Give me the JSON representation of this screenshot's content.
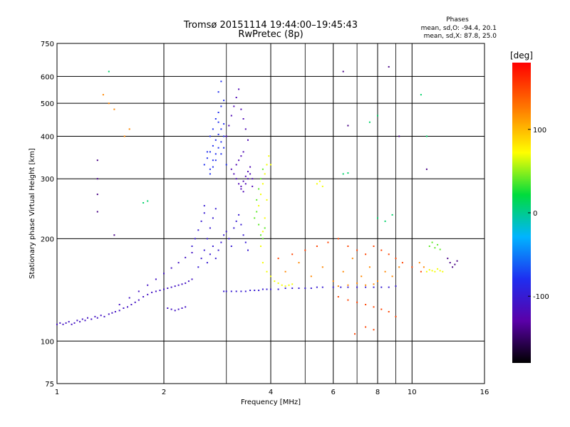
{
  "chart_data": {
    "type": "scatter",
    "title": "Tromsø 20151114 19:44:00–19:45:43",
    "subtitle": "RwPretec (8p)",
    "xlabel": "Frequency [MHz]",
    "ylabel": "Stationary phase Virtual Height [km]",
    "x_scale": "log",
    "y_scale": "log",
    "xlim": [
      1,
      16
    ],
    "ylim": [
      75,
      750
    ],
    "xticks": [
      1,
      2,
      4,
      6,
      8,
      10,
      16
    ],
    "yticks": [
      75,
      100,
      200,
      300,
      400,
      500,
      600,
      750
    ],
    "x_minor_grid": [
      3,
      5,
      7,
      9
    ],
    "grid": true,
    "legend": {
      "title": "Phases",
      "lines": [
        "mean, sd,O: -94.4, 20.1",
        "mean, sd,X:  87.8, 25.0"
      ],
      "placement": "top-right"
    },
    "colorbar": {
      "label": "[deg]",
      "range": [
        -180,
        180
      ],
      "ticks": [
        100,
        0,
        -100
      ],
      "colors": [
        "#000000",
        "#5a00a8",
        "#1e2ef0",
        "#00b4ff",
        "#00dc3c",
        "#ffff00",
        "#ff7800",
        "#ff0000"
      ]
    },
    "series": [
      {
        "phase": -110,
        "points": [
          [
            1.0,
            112
          ],
          [
            1.02,
            113
          ],
          [
            1.04,
            112
          ],
          [
            1.06,
            113
          ],
          [
            1.08,
            114
          ],
          [
            1.1,
            112
          ],
          [
            1.12,
            113
          ],
          [
            1.14,
            115
          ],
          [
            1.16,
            114
          ],
          [
            1.18,
            116
          ],
          [
            1.2,
            115
          ],
          [
            1.22,
            117
          ],
          [
            1.25,
            116
          ],
          [
            1.28,
            118
          ],
          [
            1.3,
            117
          ],
          [
            1.33,
            119
          ],
          [
            1.36,
            118
          ],
          [
            1.4,
            120
          ],
          [
            1.43,
            121
          ],
          [
            1.46,
            122
          ],
          [
            1.5,
            123
          ],
          [
            1.54,
            125
          ],
          [
            1.58,
            126
          ],
          [
            1.62,
            128
          ],
          [
            1.66,
            130
          ],
          [
            1.7,
            132
          ],
          [
            1.75,
            135
          ],
          [
            1.8,
            137
          ],
          [
            1.85,
            139
          ],
          [
            1.9,
            140
          ],
          [
            1.95,
            141
          ],
          [
            2.0,
            142
          ],
          [
            2.05,
            143
          ],
          [
            2.1,
            144
          ],
          [
            2.15,
            145
          ],
          [
            2.2,
            146
          ],
          [
            2.25,
            147
          ],
          [
            2.3,
            148
          ],
          [
            2.35,
            150
          ],
          [
            2.4,
            152
          ],
          [
            1.5,
            128
          ],
          [
            1.6,
            134
          ],
          [
            1.7,
            140
          ],
          [
            1.8,
            146
          ],
          [
            1.9,
            152
          ],
          [
            2.0,
            158
          ],
          [
            2.1,
            164
          ],
          [
            2.2,
            170
          ],
          [
            2.3,
            176
          ],
          [
            2.4,
            182
          ],
          [
            2.05,
            125
          ],
          [
            2.1,
            124
          ],
          [
            2.15,
            123
          ],
          [
            2.2,
            124
          ],
          [
            2.25,
            125
          ],
          [
            2.3,
            126
          ]
        ]
      },
      {
        "phase": -100,
        "points": [
          [
            2.4,
            190
          ],
          [
            2.45,
            200
          ],
          [
            2.5,
            212
          ],
          [
            2.55,
            225
          ],
          [
            2.6,
            238
          ],
          [
            2.6,
            250
          ],
          [
            2.65,
            200
          ],
          [
            2.7,
            215
          ],
          [
            2.75,
            230
          ],
          [
            2.8,
            245
          ],
          [
            2.5,
            165
          ],
          [
            2.55,
            175
          ],
          [
            2.6,
            185
          ],
          [
            2.65,
            170
          ],
          [
            2.7,
            180
          ],
          [
            2.75,
            190
          ],
          [
            2.8,
            175
          ],
          [
            2.85,
            185
          ],
          [
            2.9,
            195
          ],
          [
            2.95,
            205
          ],
          [
            3.0,
            210
          ],
          [
            3.05,
            200
          ],
          [
            3.1,
            190
          ],
          [
            3.15,
            215
          ],
          [
            3.2,
            225
          ],
          [
            3.25,
            235
          ],
          [
            3.3,
            220
          ],
          [
            3.35,
            205
          ],
          [
            3.4,
            195
          ],
          [
            3.45,
            185
          ],
          [
            2.95,
            140
          ],
          [
            3.0,
            140
          ],
          [
            3.1,
            140
          ],
          [
            3.2,
            140
          ],
          [
            3.3,
            140
          ],
          [
            3.4,
            140
          ],
          [
            3.5,
            141
          ],
          [
            3.6,
            141
          ],
          [
            3.7,
            141
          ],
          [
            3.8,
            142
          ],
          [
            3.9,
            142
          ],
          [
            4.0,
            142
          ],
          [
            4.2,
            142
          ],
          [
            4.4,
            143
          ],
          [
            4.6,
            143
          ],
          [
            4.8,
            143
          ],
          [
            5.0,
            143
          ],
          [
            5.2,
            143
          ],
          [
            5.4,
            144
          ],
          [
            5.6,
            144
          ],
          [
            6.0,
            144
          ],
          [
            6.3,
            144
          ],
          [
            6.6,
            144
          ],
          [
            7.0,
            144
          ],
          [
            7.4,
            144
          ],
          [
            7.8,
            144
          ],
          [
            8.2,
            144
          ],
          [
            8.6,
            144
          ],
          [
            9.0,
            145
          ]
        ]
      },
      {
        "phase": -80,
        "points": [
          [
            2.6,
            330
          ],
          [
            2.65,
            345
          ],
          [
            2.7,
            360
          ],
          [
            2.75,
            375
          ],
          [
            2.8,
            390
          ],
          [
            2.85,
            405
          ],
          [
            2.9,
            420
          ],
          [
            2.95,
            435
          ],
          [
            2.7,
            320
          ],
          [
            2.75,
            340
          ],
          [
            2.8,
            355
          ],
          [
            2.85,
            370
          ],
          [
            2.9,
            385
          ],
          [
            2.95,
            400
          ],
          [
            2.8,
            450
          ],
          [
            2.85,
            470
          ],
          [
            2.9,
            490
          ],
          [
            2.95,
            510
          ],
          [
            2.85,
            540
          ],
          [
            2.9,
            580
          ],
          [
            2.7,
            310
          ],
          [
            2.75,
            325
          ],
          [
            2.8,
            340
          ],
          [
            2.9,
            355
          ],
          [
            2.95,
            370
          ],
          [
            3.0,
            330
          ],
          [
            2.65,
            360
          ],
          [
            2.7,
            400
          ],
          [
            2.75,
            420
          ],
          [
            2.85,
            440
          ]
        ]
      },
      {
        "phase": -120,
        "points": [
          [
            3.1,
            320
          ],
          [
            3.15,
            310
          ],
          [
            3.2,
            300
          ],
          [
            3.25,
            290
          ],
          [
            3.3,
            285
          ],
          [
            3.35,
            295
          ],
          [
            3.4,
            305
          ],
          [
            3.45,
            315
          ],
          [
            3.5,
            325
          ],
          [
            3.55,
            300
          ],
          [
            3.3,
            280
          ],
          [
            3.35,
            275
          ],
          [
            3.4,
            290
          ],
          [
            3.45,
            300
          ],
          [
            3.5,
            310
          ],
          [
            3.55,
            285
          ],
          [
            3.2,
            330
          ],
          [
            3.25,
            340
          ],
          [
            3.3,
            350
          ],
          [
            3.35,
            360
          ],
          [
            3.0,
            400
          ],
          [
            3.05,
            430
          ],
          [
            3.1,
            460
          ],
          [
            3.15,
            490
          ],
          [
            3.2,
            520
          ],
          [
            3.25,
            550
          ],
          [
            3.3,
            480
          ],
          [
            3.35,
            450
          ],
          [
            3.4,
            420
          ],
          [
            3.45,
            390
          ]
        ]
      },
      {
        "phase": 70,
        "points": [
          [
            3.7,
            250
          ],
          [
            3.75,
            270
          ],
          [
            3.8,
            290
          ],
          [
            3.85,
            310
          ],
          [
            3.9,
            330
          ],
          [
            3.95,
            350
          ],
          [
            4.0,
            330
          ],
          [
            3.9,
            260
          ],
          [
            3.85,
            230
          ],
          [
            3.8,
            210
          ],
          [
            3.75,
            190
          ],
          [
            3.8,
            170
          ],
          [
            3.9,
            160
          ],
          [
            4.0,
            155
          ],
          [
            4.1,
            150
          ],
          [
            4.2,
            148
          ],
          [
            4.3,
            146
          ],
          [
            4.4,
            145
          ],
          [
            4.5,
            146
          ],
          [
            4.6,
            147
          ],
          [
            5.4,
            290
          ],
          [
            5.5,
            295
          ],
          [
            5.6,
            285
          ],
          [
            11.0,
            160
          ],
          [
            11.2,
            162
          ],
          [
            11.4,
            161
          ],
          [
            11.6,
            160
          ],
          [
            11.8,
            163
          ],
          [
            12.0,
            161
          ],
          [
            12.2,
            160
          ]
        ]
      },
      {
        "phase": 40,
        "points": [
          [
            3.65,
            240
          ],
          [
            3.7,
            220
          ],
          [
            3.75,
            205
          ],
          [
            3.8,
            200
          ],
          [
            3.85,
            215
          ],
          [
            3.6,
            230
          ],
          [
            3.65,
            260
          ],
          [
            3.7,
            280
          ],
          [
            3.75,
            300
          ],
          [
            3.8,
            320
          ],
          [
            11.2,
            190
          ],
          [
            11.4,
            195
          ],
          [
            11.6,
            188
          ],
          [
            11.8,
            192
          ],
          [
            12.0,
            186
          ]
        ]
      },
      {
        "phase": 120,
        "points": [
          [
            4.4,
            160
          ],
          [
            4.8,
            170
          ],
          [
            5.2,
            155
          ],
          [
            5.6,
            165
          ],
          [
            6.0,
            150
          ],
          [
            6.4,
            160
          ],
          [
            6.8,
            175
          ],
          [
            7.2,
            155
          ],
          [
            7.6,
            165
          ],
          [
            8.0,
            150
          ],
          [
            8.4,
            160
          ],
          [
            8.8,
            155
          ],
          [
            9.2,
            165
          ],
          [
            10.5,
            170
          ],
          [
            10.8,
            165
          ],
          [
            6.2,
            145
          ],
          [
            6.6,
            146
          ],
          [
            7.0,
            148
          ],
          [
            7.4,
            146
          ],
          [
            7.8,
            147
          ],
          [
            1.35,
            530
          ],
          [
            1.4,
            500
          ],
          [
            1.45,
            480
          ],
          [
            1.55,
            400
          ],
          [
            1.6,
            420
          ]
        ]
      },
      {
        "phase": 150,
        "points": [
          [
            4.2,
            175
          ],
          [
            4.6,
            180
          ],
          [
            5.0,
            185
          ],
          [
            5.4,
            190
          ],
          [
            5.8,
            195
          ],
          [
            6.2,
            200
          ],
          [
            6.6,
            190
          ],
          [
            7.0,
            185
          ],
          [
            7.4,
            180
          ],
          [
            7.8,
            190
          ],
          [
            8.2,
            185
          ],
          [
            8.6,
            180
          ],
          [
            9.0,
            175
          ],
          [
            9.4,
            170
          ],
          [
            10.0,
            165
          ],
          [
            10.6,
            160
          ],
          [
            6.2,
            135
          ],
          [
            6.6,
            132
          ],
          [
            7.0,
            130
          ],
          [
            7.4,
            128
          ],
          [
            7.8,
            126
          ],
          [
            8.2,
            124
          ],
          [
            8.6,
            122
          ],
          [
            9.0,
            118
          ],
          [
            6.9,
            105
          ],
          [
            7.4,
            110
          ],
          [
            7.8,
            108
          ]
        ]
      },
      {
        "phase": 10,
        "points": [
          [
            1.4,
            620
          ],
          [
            1.75,
            255
          ],
          [
            1.8,
            258
          ],
          [
            6.4,
            310
          ],
          [
            6.6,
            312
          ],
          [
            8.0,
            230
          ],
          [
            8.4,
            225
          ],
          [
            8.8,
            235
          ],
          [
            10.6,
            530
          ],
          [
            11.0,
            400
          ],
          [
            7.6,
            440
          ],
          [
            8.0,
            460
          ]
        ]
      },
      {
        "phase": -140,
        "points": [
          [
            1.3,
            340
          ],
          [
            1.3,
            300
          ],
          [
            1.3,
            270
          ],
          [
            1.3,
            240
          ],
          [
            1.45,
            205
          ],
          [
            6.4,
            620
          ],
          [
            6.6,
            430
          ],
          [
            8.6,
            640
          ],
          [
            9.2,
            400
          ],
          [
            11.0,
            320
          ],
          [
            12.8,
            170
          ],
          [
            13.0,
            165
          ],
          [
            13.2,
            168
          ],
          [
            13.4,
            172
          ],
          [
            12.6,
            175
          ]
        ]
      }
    ]
  }
}
